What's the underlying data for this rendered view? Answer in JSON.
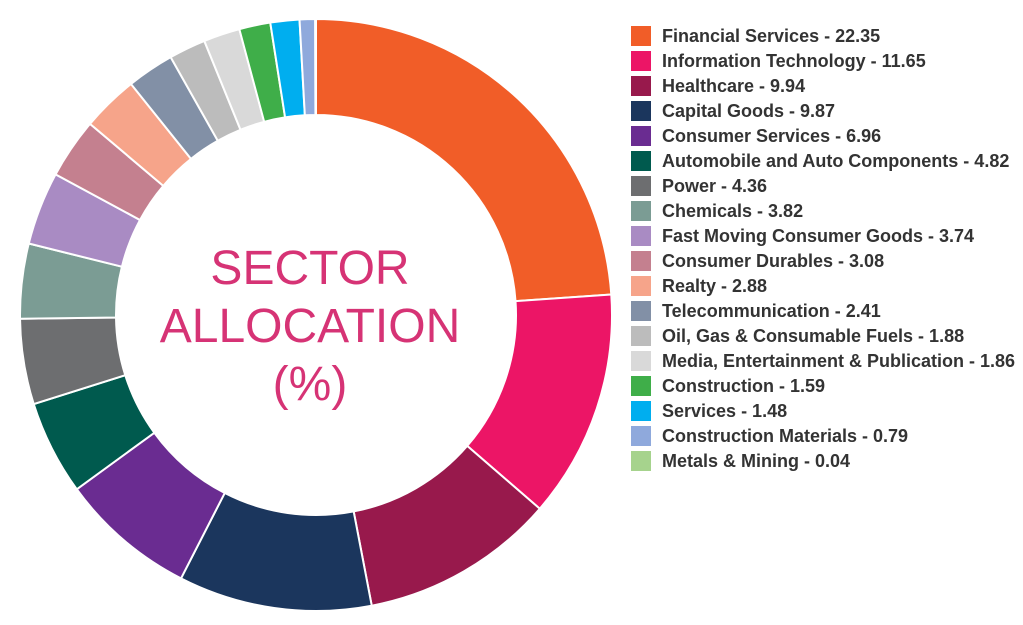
{
  "chart_data": {
    "type": "pie",
    "variant": "donut",
    "center_title_lines": [
      "SECTOR",
      "ALLOCATION",
      "(%)"
    ],
    "slices": [
      {
        "label": "Financial Services - 22.35",
        "name": "Financial Services",
        "value": 22.35,
        "color": "#f15d28"
      },
      {
        "label": "Information Technology - 11.65",
        "name": "Information Technology",
        "value": 11.65,
        "color": "#ec1566"
      },
      {
        "label": "Healthcare - 9.94",
        "name": "Healthcare",
        "value": 9.94,
        "color": "#98194c"
      },
      {
        "label": "Capital Goods - 9.87",
        "name": "Capital Goods",
        "value": 9.87,
        "color": "#1b365d"
      },
      {
        "label": "Consumer Services - 6.96",
        "name": "Consumer Services",
        "value": 6.96,
        "color": "#6a2c91"
      },
      {
        "label": "Automobile and Auto Components - 4.82",
        "name": "Automobile and Auto Components",
        "value": 4.82,
        "color": "#005a4e"
      },
      {
        "label": "Power - 4.36",
        "name": "Power",
        "value": 4.36,
        "color": "#6d6e70"
      },
      {
        "label": "Chemicals - 3.82",
        "name": "Chemicals",
        "value": 3.82,
        "color": "#7b9c94"
      },
      {
        "label": "Fast Moving Consumer Goods - 3.74",
        "name": "Fast Moving Consumer Goods",
        "value": 3.74,
        "color": "#a98bc3"
      },
      {
        "label": "Consumer Durables - 3.08",
        "name": "Consumer Durables",
        "value": 3.08,
        "color": "#c4808f"
      },
      {
        "label": "Realty - 2.88",
        "name": "Realty",
        "value": 2.88,
        "color": "#f6a48a"
      },
      {
        "label": "Telecommunication - 2.41",
        "name": "Telecommunication",
        "value": 2.41,
        "color": "#8290a6"
      },
      {
        "label": "Oil, Gas & Consumable Fuels - 1.88",
        "name": "Oil, Gas & Consumable Fuels",
        "value": 1.88,
        "color": "#bcbcbc"
      },
      {
        "label": "Media, Entertainment & Publication - 1.86",
        "name": "Media, Entertainment & Publication",
        "value": 1.86,
        "color": "#d9d9d9"
      },
      {
        "label": "Construction - 1.59",
        "name": "Construction",
        "value": 1.59,
        "color": "#3fae49"
      },
      {
        "label": "Services - 1.48",
        "name": "Services",
        "value": 1.48,
        "color": "#00aeef"
      },
      {
        "label": "Construction Materials - 0.79",
        "name": "Construction Materials",
        "value": 0.79,
        "color": "#8fa9dc"
      },
      {
        "label": "Metals & Mining - 0.04",
        "name": "Metals & Mining",
        "value": 0.04,
        "color": "#a6d38d"
      }
    ],
    "legend_position": "right",
    "title_color": "#d63375"
  }
}
